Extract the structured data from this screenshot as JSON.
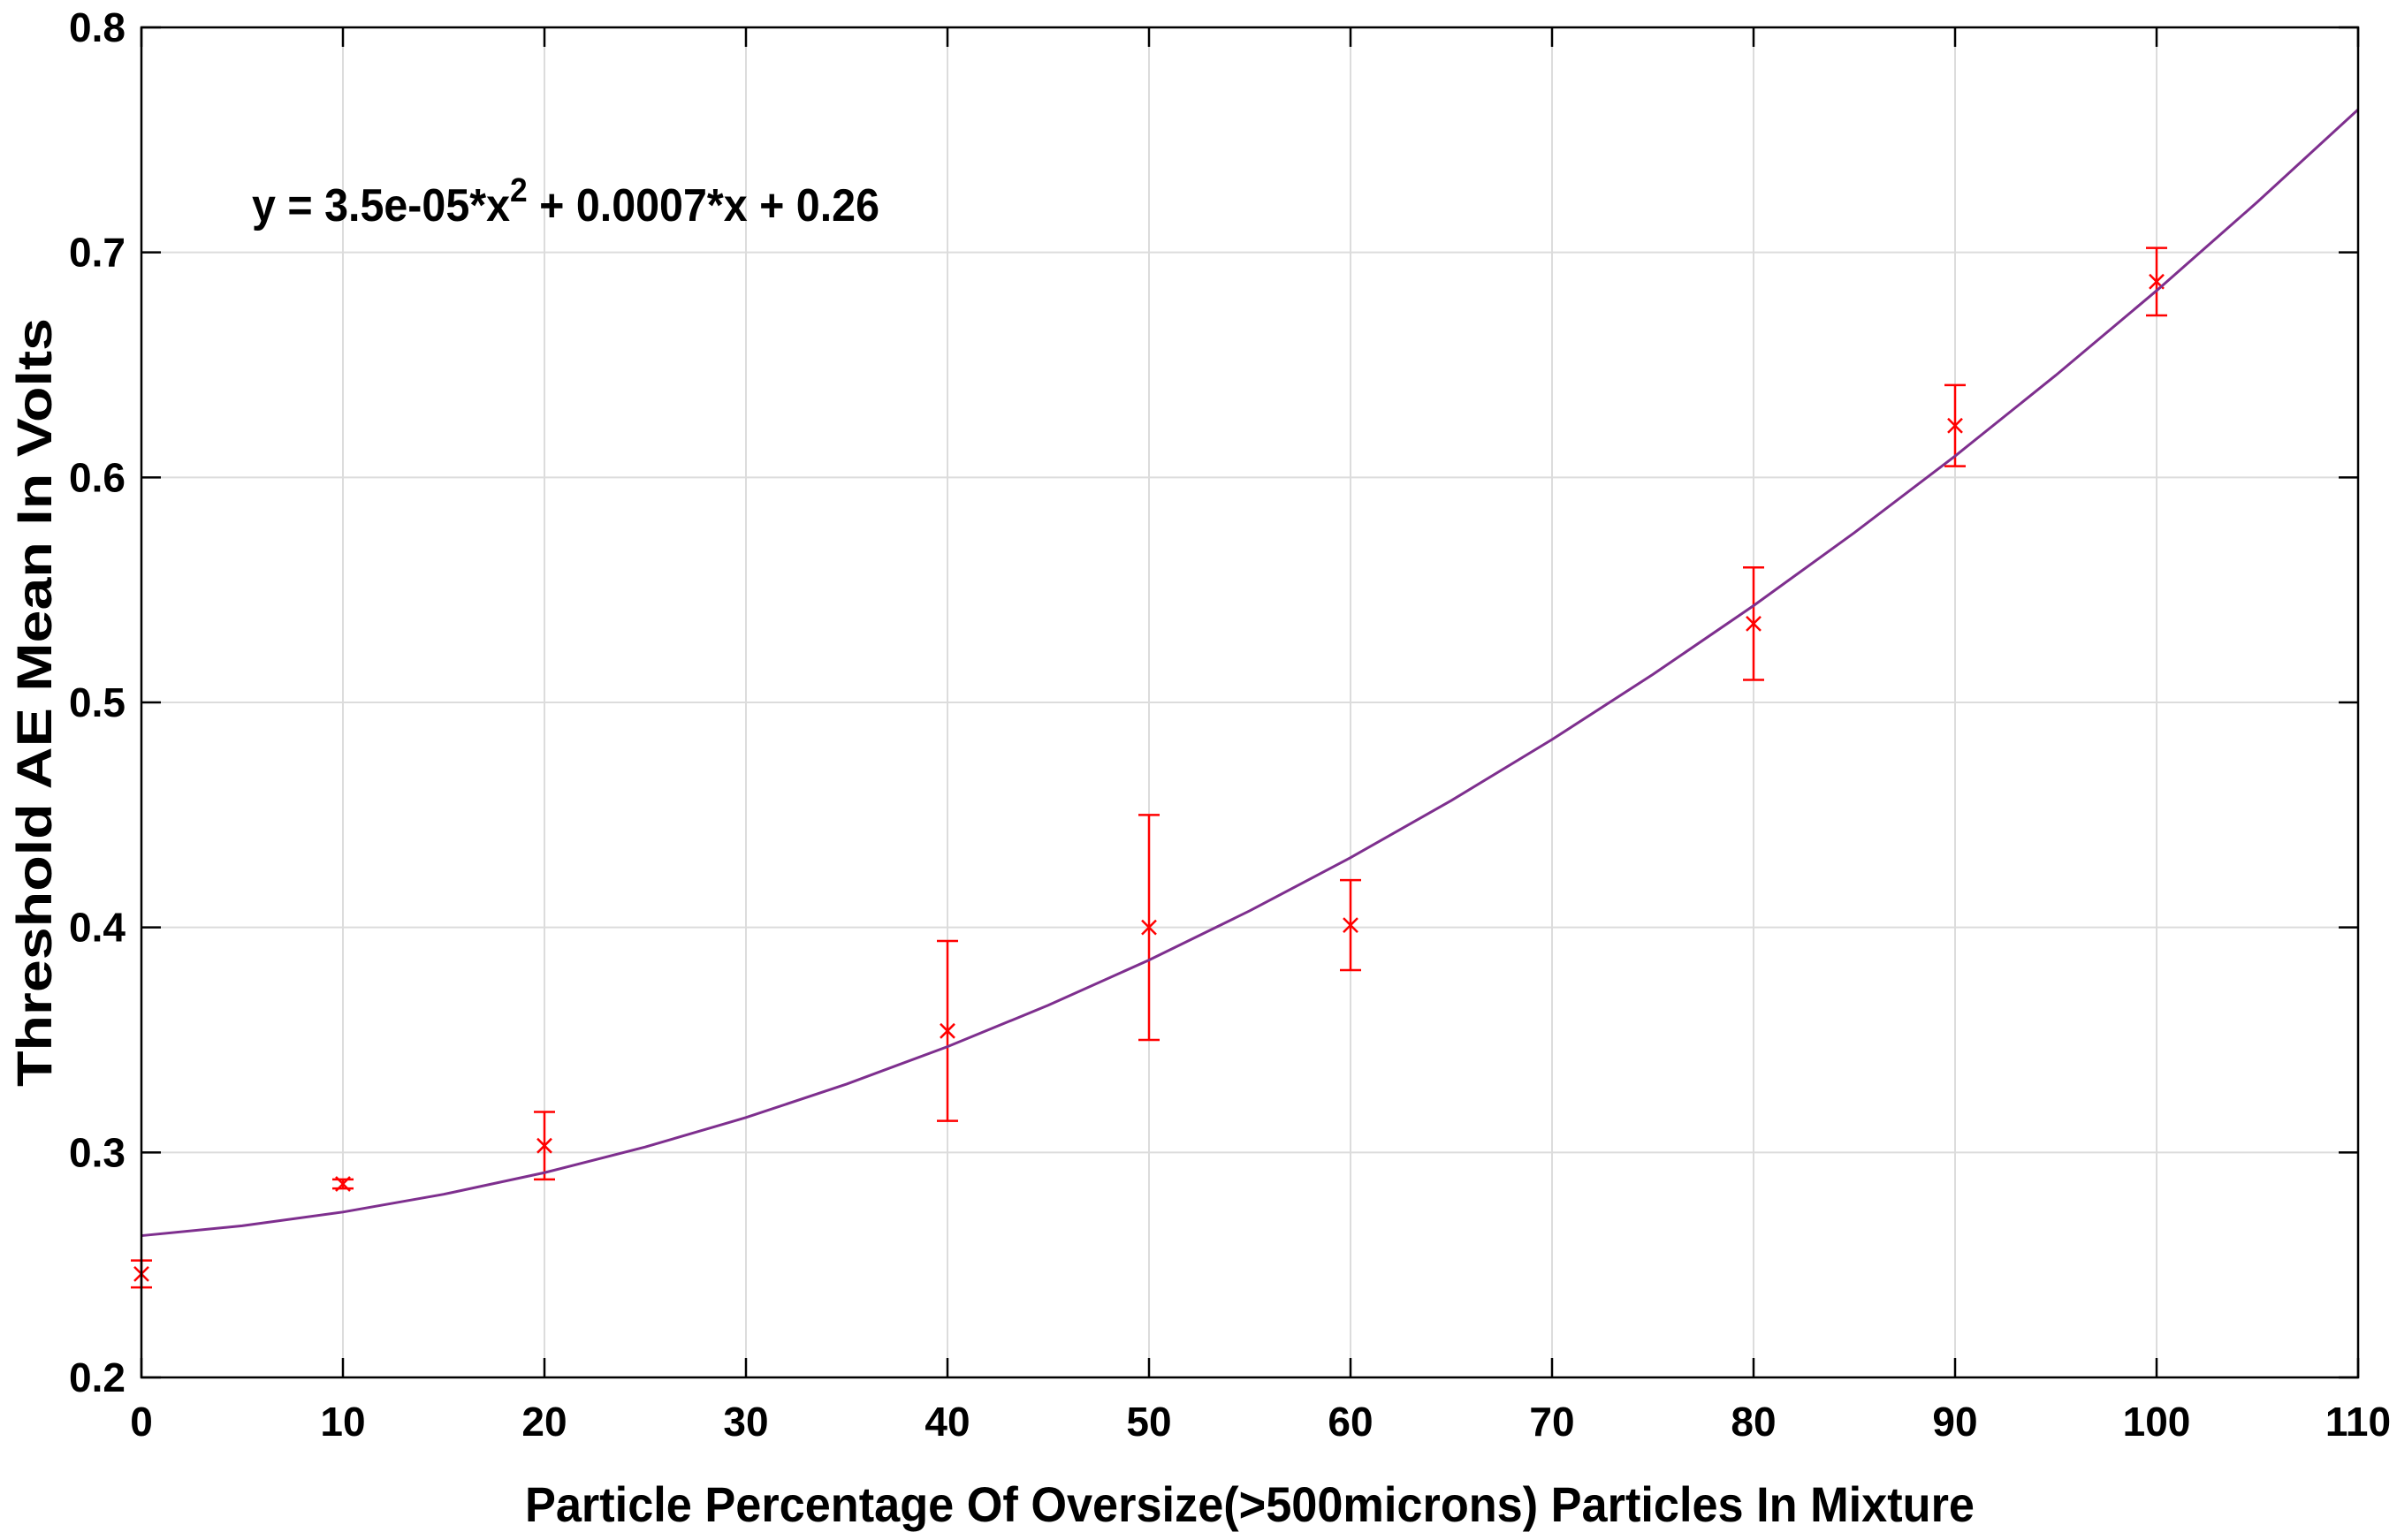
{
  "chart_data": {
    "type": "scatter",
    "xlabel": "Particle Percentage Of Oversize(>500microns) Particles In Mixture",
    "ylabel": "Threshold AE Mean In Volts",
    "annotation": [
      "y = 3.5e-05*x",
      "2",
      " + 0.0007*x + 0.26"
    ],
    "xlim": [
      0,
      110
    ],
    "ylim": [
      0.2,
      0.8
    ],
    "xticks": [
      0,
      10,
      20,
      30,
      40,
      50,
      60,
      70,
      80,
      90,
      100,
      110
    ],
    "yticks": [
      0.2,
      0.3,
      0.4,
      0.5,
      0.6,
      0.7,
      0.8
    ],
    "grid": true,
    "series": [
      {
        "type": "errorbar",
        "color": "#ff0000",
        "x": [
          0,
          10,
          20,
          40,
          50,
          60,
          80,
          90,
          100
        ],
        "values": [
          0.246,
          0.286,
          0.303,
          0.354,
          0.4,
          0.401,
          0.535,
          0.623,
          0.687
        ],
        "errors": [
          0.006,
          0.002,
          0.015,
          0.04,
          0.05,
          0.02,
          0.025,
          0.018,
          0.015
        ]
      },
      {
        "type": "line",
        "color": "#7e2f8e",
        "x": [
          0,
          5,
          10,
          15,
          20,
          25,
          30,
          35,
          40,
          45,
          50,
          55,
          60,
          65,
          70,
          75,
          80,
          85,
          90,
          95,
          100,
          105,
          110
        ],
        "values": [
          0.263,
          0.2674,
          0.2735,
          0.2814,
          0.291,
          0.3024,
          0.3155,
          0.3304,
          0.347,
          0.3654,
          0.3855,
          0.4074,
          0.431,
          0.4564,
          0.4835,
          0.5124,
          0.543,
          0.5754,
          0.6095,
          0.6454,
          0.683,
          0.7224,
          0.7635
        ]
      }
    ]
  }
}
